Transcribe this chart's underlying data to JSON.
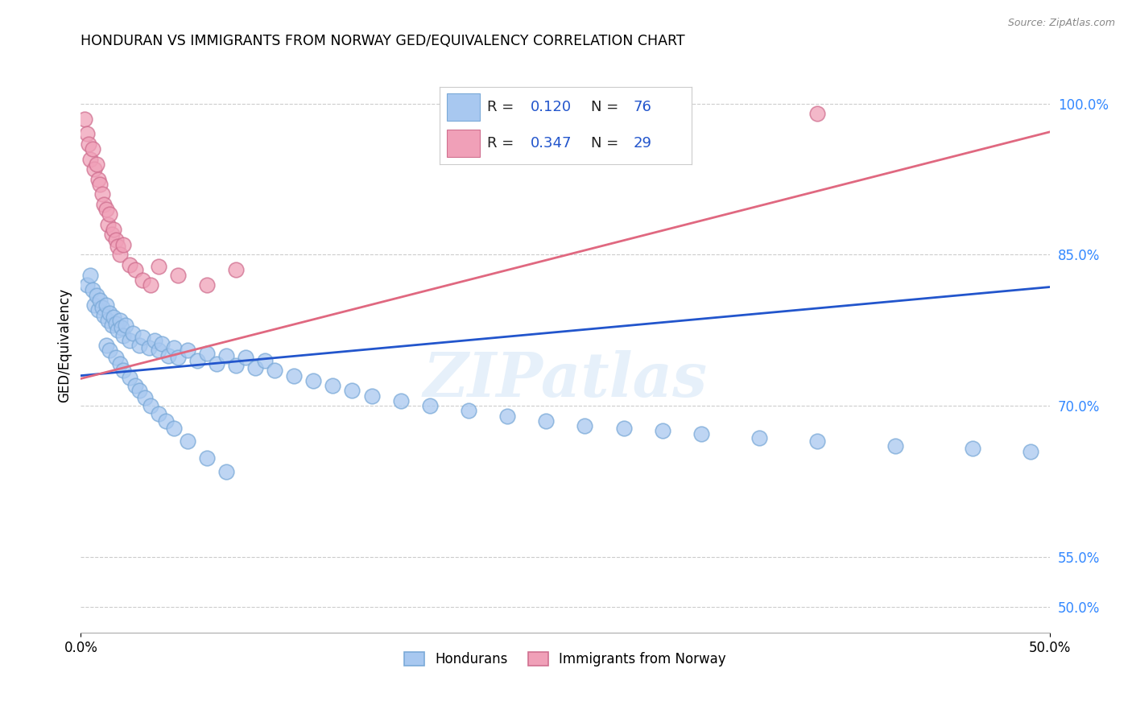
{
  "title": "HONDURAN VS IMMIGRANTS FROM NORWAY GED/EQUIVALENCY CORRELATION CHART",
  "source": "Source: ZipAtlas.com",
  "ylabel": "GED/Equivalency",
  "xlim": [
    0.0,
    0.5
  ],
  "ylim": [
    0.475,
    1.045
  ],
  "ytick_vals": [
    0.5,
    0.55,
    0.7,
    0.85,
    1.0
  ],
  "ytick_labels": [
    "50.0%",
    "55.0%",
    "70.0%",
    "85.0%",
    "100.0%"
  ],
  "hondurans_color": "#a8c8f0",
  "norway_color": "#f0a0b8",
  "trend_hondurans_color": "#2255cc",
  "trend_norway_color": "#e06880",
  "watermark": "ZIPatlas",
  "trend_h_x0": 0.0,
  "trend_h_y0": 0.73,
  "trend_h_x1": 0.5,
  "trend_h_y1": 0.818,
  "trend_n_x0": 0.0,
  "trend_n_y0": 0.727,
  "trend_n_x1": 0.5,
  "trend_n_y1": 0.972,
  "hondurans_x": [
    0.003,
    0.005,
    0.006,
    0.007,
    0.008,
    0.009,
    0.01,
    0.011,
    0.012,
    0.013,
    0.014,
    0.015,
    0.016,
    0.017,
    0.018,
    0.019,
    0.02,
    0.021,
    0.022,
    0.023,
    0.025,
    0.027,
    0.03,
    0.032,
    0.035,
    0.038,
    0.04,
    0.042,
    0.045,
    0.048,
    0.05,
    0.055,
    0.06,
    0.065,
    0.07,
    0.075,
    0.08,
    0.085,
    0.09,
    0.095,
    0.1,
    0.11,
    0.12,
    0.13,
    0.14,
    0.15,
    0.165,
    0.18,
    0.2,
    0.22,
    0.24,
    0.26,
    0.28,
    0.3,
    0.32,
    0.35,
    0.38,
    0.42,
    0.46,
    0.49,
    0.013,
    0.015,
    0.018,
    0.02,
    0.022,
    0.025,
    0.028,
    0.03,
    0.033,
    0.036,
    0.04,
    0.044,
    0.048,
    0.055,
    0.065,
    0.075
  ],
  "hondurans_y": [
    0.82,
    0.83,
    0.815,
    0.8,
    0.81,
    0.795,
    0.805,
    0.798,
    0.79,
    0.8,
    0.785,
    0.792,
    0.78,
    0.788,
    0.782,
    0.775,
    0.785,
    0.778,
    0.77,
    0.78,
    0.765,
    0.772,
    0.76,
    0.768,
    0.758,
    0.765,
    0.755,
    0.762,
    0.75,
    0.758,
    0.748,
    0.755,
    0.745,
    0.752,
    0.742,
    0.75,
    0.74,
    0.748,
    0.738,
    0.745,
    0.735,
    0.73,
    0.725,
    0.72,
    0.715,
    0.71,
    0.705,
    0.7,
    0.695,
    0.69,
    0.685,
    0.68,
    0.678,
    0.675,
    0.672,
    0.668,
    0.665,
    0.66,
    0.658,
    0.655,
    0.76,
    0.755,
    0.748,
    0.742,
    0.735,
    0.728,
    0.72,
    0.715,
    0.708,
    0.7,
    0.692,
    0.685,
    0.678,
    0.665,
    0.648,
    0.635
  ],
  "norway_x": [
    0.002,
    0.003,
    0.004,
    0.005,
    0.006,
    0.007,
    0.008,
    0.009,
    0.01,
    0.011,
    0.012,
    0.013,
    0.014,
    0.015,
    0.016,
    0.017,
    0.018,
    0.019,
    0.02,
    0.022,
    0.025,
    0.028,
    0.032,
    0.036,
    0.04,
    0.05,
    0.065,
    0.08,
    0.38
  ],
  "norway_y": [
    0.985,
    0.97,
    0.96,
    0.945,
    0.955,
    0.935,
    0.94,
    0.925,
    0.92,
    0.91,
    0.9,
    0.895,
    0.88,
    0.89,
    0.87,
    0.875,
    0.865,
    0.858,
    0.85,
    0.86,
    0.84,
    0.835,
    0.825,
    0.82,
    0.838,
    0.83,
    0.82,
    0.835,
    0.99
  ]
}
